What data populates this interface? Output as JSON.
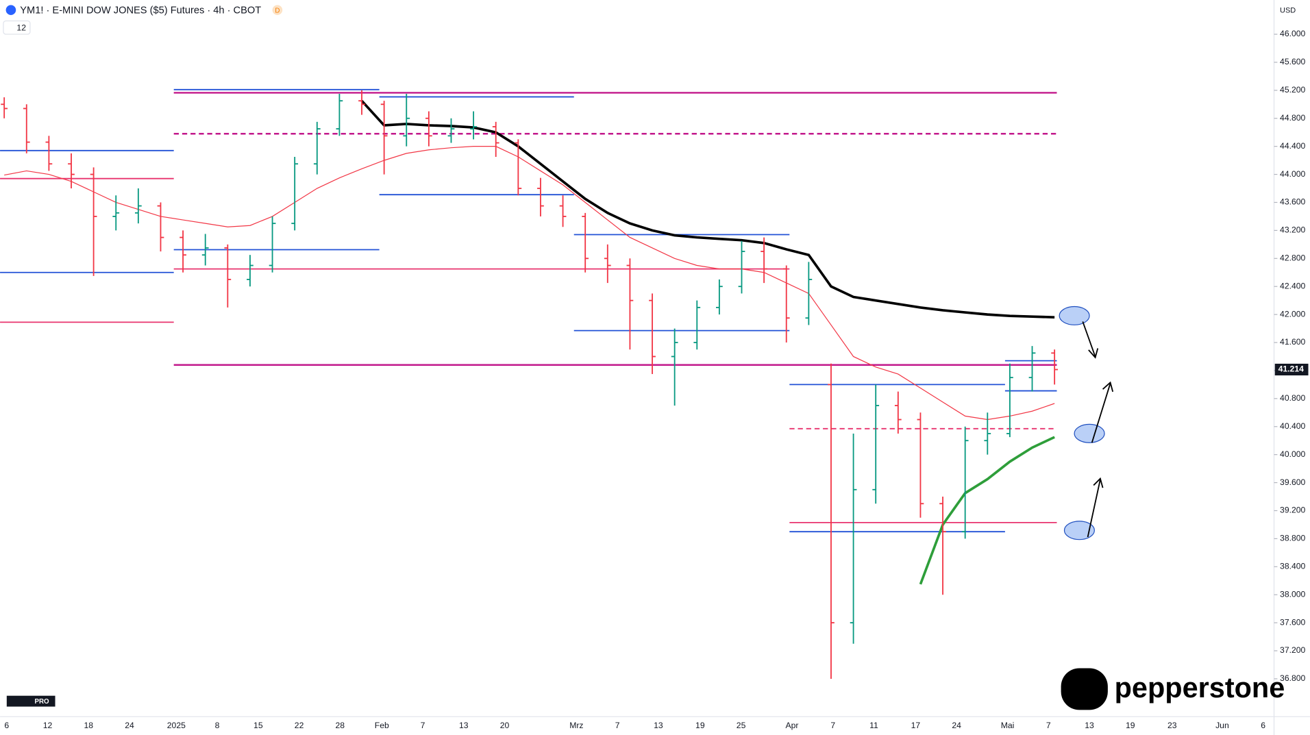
{
  "header": {
    "symbol": "YM1! · E-MINI DOW JONES ($5) Futures · 4h · CBOT",
    "badge": "D",
    "interval_box": "12",
    "currency": "USD"
  },
  "brand": "pepperstone",
  "tv_badge": "PRO",
  "chart_data": {
    "type": "ohlc",
    "open": [
      45000,
      44940,
      44460,
      44150,
      44000,
      43400,
      43450,
      43550,
      43100,
      42850,
      42950,
      42500,
      42700,
      43300,
      44150,
      44650,
      45050,
      45000,
      44550,
      44800,
      44550,
      44650,
      44680,
      44450,
      43800,
      43550,
      43400,
      42800,
      42700,
      42200,
      41400,
      41600,
      42100,
      42400,
      42900,
      42650,
      41950,
      41000,
      37600,
      39500,
      40700,
      40500,
      39300,
      38900,
      40200,
      40300,
      41100,
      41450
    ],
    "high": [
      45100,
      45000,
      44550,
      44300,
      44100,
      43700,
      43800,
      43600,
      43200,
      43150,
      43000,
      42850,
      43400,
      44250,
      44750,
      45150,
      45200,
      45050,
      45150,
      44900,
      44800,
      44900,
      44750,
      44500,
      43950,
      43700,
      43450,
      43000,
      42800,
      42300,
      41800,
      42200,
      42500,
      43050,
      43100,
      42700,
      42750,
      41300,
      40300,
      41000,
      40900,
      40600,
      39400,
      40400,
      40600,
      41300,
      41550,
      41500
    ],
    "low": [
      44800,
      44300,
      44050,
      43800,
      42550,
      43200,
      43300,
      42900,
      42600,
      42700,
      42100,
      42400,
      42600,
      43200,
      44000,
      44550,
      44850,
      44000,
      44400,
      44400,
      44450,
      44500,
      44250,
      43700,
      43400,
      43250,
      42600,
      42450,
      41500,
      41150,
      40700,
      41500,
      42000,
      42300,
      42450,
      41600,
      41850,
      36800,
      37300,
      39300,
      40300,
      39100,
      38000,
      38800,
      40000,
      40250,
      40900,
      41000
    ],
    "close": [
      44940,
      44460,
      44150,
      44000,
      43400,
      43450,
      43550,
      43100,
      42850,
      42950,
      42500,
      42700,
      43300,
      44150,
      44650,
      45050,
      45000,
      44550,
      44800,
      44550,
      44650,
      44680,
      44450,
      43800,
      43550,
      43400,
      42800,
      42700,
      42200,
      41400,
      41600,
      42100,
      42400,
      42900,
      42650,
      41950,
      42500,
      37600,
      39500,
      40700,
      40500,
      39300,
      38900,
      40200,
      40300,
      41100,
      41450,
      41214
    ],
    "up_color": "#089981",
    "down_color": "#f23645",
    "lines": [
      {
        "color": "#000000",
        "width": 3,
        "values": [
          null,
          null,
          null,
          null,
          null,
          null,
          null,
          null,
          null,
          null,
          null,
          null,
          null,
          null,
          null,
          null,
          45050,
          44700,
          44720,
          44700,
          44690,
          44670,
          44600,
          44400,
          44150,
          43900,
          43650,
          43450,
          43300,
          43200,
          43130,
          43100,
          43080,
          43060,
          43020,
          42930,
          42850,
          42400,
          42250,
          42200,
          42150,
          42100,
          42060,
          42030,
          42000,
          41980,
          41970,
          41960
        ]
      },
      {
        "color": "#f23645",
        "width": 1,
        "values": [
          43990,
          44050,
          44000,
          43900,
          43750,
          43600,
          43500,
          43400,
          43350,
          43300,
          43250,
          43270,
          43400,
          43600,
          43800,
          43950,
          44080,
          44200,
          44300,
          44350,
          44380,
          44400,
          44400,
          44250,
          44050,
          43850,
          43600,
          43350,
          43100,
          42950,
          42800,
          42700,
          42650,
          42650,
          42600,
          42450,
          42300,
          41850,
          41400,
          41250,
          41150,
          40950,
          40750,
          40550,
          40500,
          40550,
          40620,
          40730
        ]
      },
      {
        "color": "#2e9e3a",
        "width": 3,
        "values": [
          null,
          null,
          null,
          null,
          null,
          null,
          null,
          null,
          null,
          null,
          null,
          null,
          null,
          null,
          null,
          null,
          null,
          null,
          null,
          null,
          null,
          null,
          null,
          null,
          null,
          null,
          null,
          null,
          null,
          null,
          null,
          null,
          null,
          null,
          null,
          null,
          null,
          null,
          null,
          null,
          null,
          38150,
          39000,
          39450,
          39650,
          39900,
          40100,
          40250
        ]
      }
    ],
    "levels": [
      {
        "value": 45210,
        "color": "#2151d6",
        "dashed": false
      },
      {
        "value": 45165,
        "color": "#c2188b",
        "dashed": false
      },
      {
        "value": 45106,
        "color": "#2151d6",
        "dashed": false
      },
      {
        "value": 44580,
        "color": "#c2188b",
        "dashed": true
      },
      {
        "value": 44340,
        "color": "#2151d6",
        "dashed": false
      },
      {
        "value": 43940,
        "color": "#e8336e",
        "dashed": false
      },
      {
        "value": 43710,
        "color": "#2151d6",
        "dashed": false
      },
      {
        "value": 43140,
        "color": "#2151d6",
        "dashed": false
      },
      {
        "value": 42925,
        "color": "#2151d6",
        "dashed": false
      },
      {
        "value": 42650,
        "color": "#e8336e",
        "dashed": false
      },
      {
        "value": 42600,
        "color": "#2151d6",
        "dashed": false
      },
      {
        "value": 41890,
        "color": "#e8336e",
        "dashed": false
      },
      {
        "value": 41770,
        "color": "#2151d6",
        "dashed": false
      },
      {
        "value": 41280,
        "color": "#c2188b",
        "dashed": false
      },
      {
        "value": 41000,
        "color": "#2151d6",
        "dashed": false
      },
      {
        "value": 41340,
        "color": "#2151d6",
        "dashed": false
      },
      {
        "value": 40910,
        "color": "#2151d6",
        "dashed": false
      },
      {
        "value": 40370,
        "color": "#e8336e",
        "dashed": true
      },
      {
        "value": 39030,
        "color": "#e8336e",
        "dashed": false
      },
      {
        "value": 38900,
        "color": "#2151d6",
        "dashed": false
      }
    ],
    "ylim": [
      36260,
      46489
    ],
    "yticks": [
      {
        "value": 46000,
        "label": "46.000"
      },
      {
        "value": 45600,
        "label": "45.600"
      },
      {
        "value": 45200,
        "label": "45.200"
      },
      {
        "value": 44800,
        "label": "44.800"
      },
      {
        "value": 44400,
        "label": "44.400"
      },
      {
        "value": 44000,
        "label": "44.000"
      },
      {
        "value": 43600,
        "label": "43.600"
      },
      {
        "value": 43200,
        "label": "43.200"
      },
      {
        "value": 42800,
        "label": "42.800"
      },
      {
        "value": 42400,
        "label": "42.400"
      },
      {
        "value": 42000,
        "label": "42.000"
      },
      {
        "value": 41600,
        "label": "41.600"
      },
      {
        "value": 41200,
        "label": "41.200"
      },
      {
        "value": 40800,
        "label": "40.800"
      },
      {
        "value": 40400,
        "label": "40.400"
      },
      {
        "value": 40000,
        "label": "40.000"
      },
      {
        "value": 39600,
        "label": "39.600"
      },
      {
        "value": 39200,
        "label": "39.200"
      },
      {
        "value": 38800,
        "label": "38.800"
      },
      {
        "value": 38400,
        "label": "38.400"
      },
      {
        "value": 38000,
        "label": "38.000"
      },
      {
        "value": 37600,
        "label": "37.600"
      },
      {
        "value": 37200,
        "label": "37.200"
      },
      {
        "value": 36800,
        "label": "36.800"
      }
    ],
    "x_labels": [
      "6",
      "12",
      "18",
      "24",
      "2025",
      "8",
      "15",
      "22",
      "28",
      "Feb",
      "7",
      "13",
      "20",
      "Mrz",
      "7",
      "13",
      "19",
      "25",
      "Apr",
      "7",
      "11",
      "17",
      "24",
      "Mai",
      "7",
      "13",
      "19",
      "23",
      "Jun",
      "6"
    ],
    "last_price": {
      "value": 41214,
      "label": "41.214"
    }
  }
}
